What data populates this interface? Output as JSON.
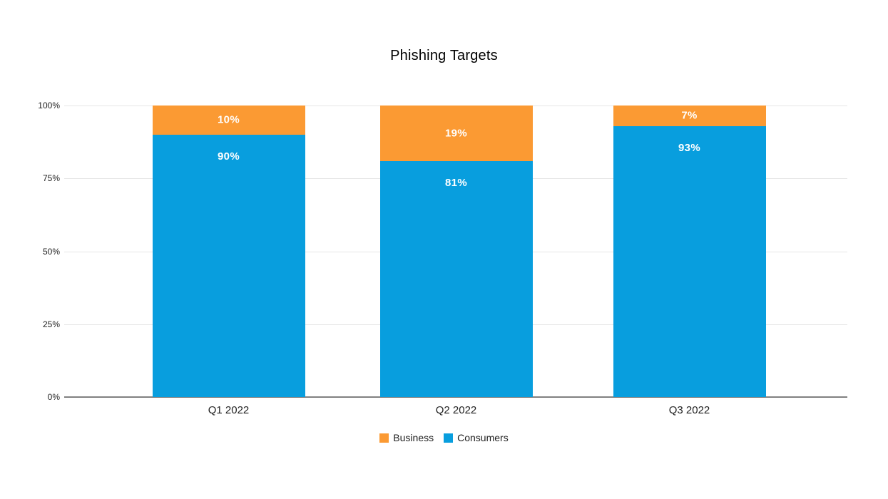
{
  "chart_data": {
    "type": "bar",
    "stacked": true,
    "title": "Phishing Targets",
    "categories": [
      "Q1 2022",
      "Q2 2022",
      "Q3 2022"
    ],
    "series": [
      {
        "name": "Business",
        "color": "#FB9A33",
        "values": [
          10,
          19,
          7
        ],
        "labels": [
          "10%",
          "19%",
          "7%"
        ]
      },
      {
        "name": "Consumers",
        "color": "#089EDE",
        "values": [
          90,
          81,
          93
        ],
        "labels": [
          "90%",
          "81%",
          "93%"
        ]
      }
    ],
    "stack_order_bottom_to_top": [
      "Consumers",
      "Business"
    ],
    "xlabel": "",
    "ylabel": "",
    "ylim": [
      0,
      100
    ],
    "yticks": [
      {
        "value": 0,
        "label": "0%"
      },
      {
        "value": 25,
        "label": "25%"
      },
      {
        "value": 50,
        "label": "50%"
      },
      {
        "value": 75,
        "label": "75%"
      },
      {
        "value": 100,
        "label": "100%"
      }
    ],
    "grid": true,
    "legend_position": "bottom",
    "colors": {
      "background": "#ffffff",
      "gridline": "#e6e6e6",
      "axis_line": "#808080",
      "tick_label": "#1f1f1f",
      "data_label": "#ffffff"
    }
  }
}
